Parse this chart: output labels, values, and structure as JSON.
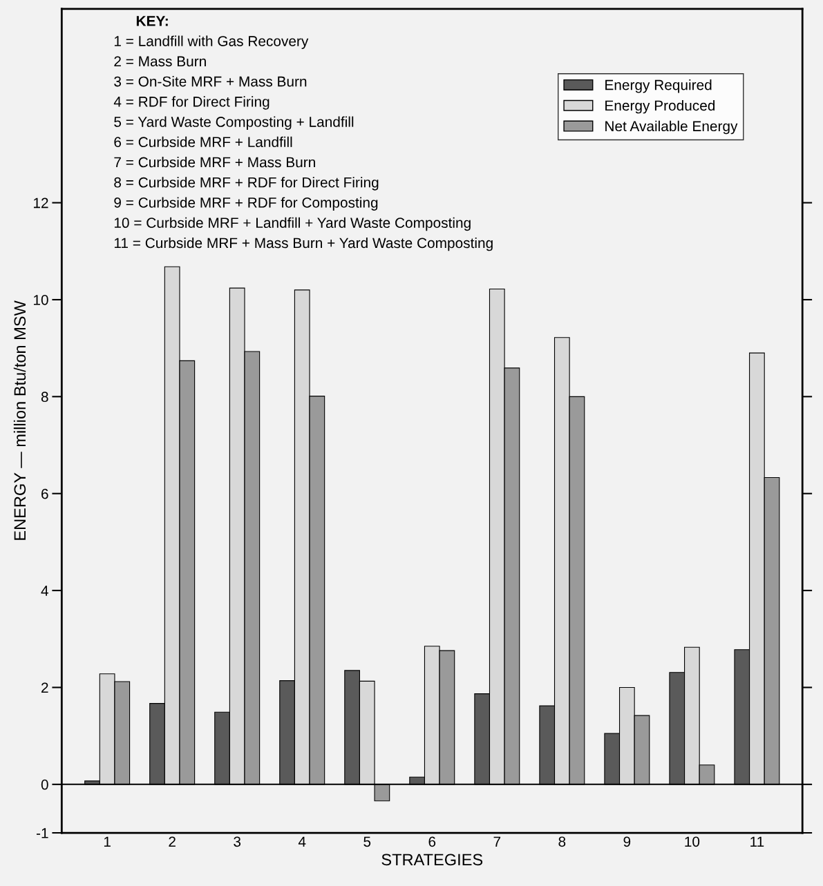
{
  "chart_data": {
    "type": "bar",
    "xlabel": "STRATEGIES",
    "ylabel": "ENERGY — million Btu/ton MSW",
    "categories": [
      "1",
      "2",
      "3",
      "4",
      "5",
      "6",
      "7",
      "8",
      "9",
      "10",
      "11"
    ],
    "series": [
      {
        "name": "Energy Required",
        "color": "#5a5a5a",
        "values": [
          0.07,
          1.67,
          1.49,
          2.14,
          2.35,
          0.15,
          1.87,
          1.62,
          1.05,
          2.31,
          2.78
        ]
      },
      {
        "name": "Energy Produced",
        "color": "#d8d8d8",
        "values": [
          2.28,
          10.68,
          10.24,
          10.2,
          2.13,
          2.85,
          10.22,
          9.22,
          2.0,
          2.83,
          8.9
        ]
      },
      {
        "name": "Net Available Energy",
        "color": "#9a9a9a",
        "values": [
          2.12,
          8.74,
          8.93,
          8.01,
          -0.34,
          2.76,
          8.59,
          8.0,
          1.42,
          0.4,
          6.33
        ]
      }
    ],
    "ylim": [
      -1,
      16
    ],
    "yticks": [
      -1,
      0,
      2,
      4,
      6,
      8,
      10,
      12
    ],
    "ref_lines": [
      {
        "axis": "y",
        "value": 0,
        "color": "#000000"
      }
    ],
    "legend": "top right",
    "grid": false,
    "annotations": [
      "KEY:",
      "1 = Landfill with Gas Recovery",
      "2 = Mass Burn",
      "3 = On-Site MRF + Mass Burn",
      "4 = RDF for Direct Firing",
      "5 = Yard Waste Composting + Landfill",
      "6 = Curbside MRF + Landfill",
      "7 = Curbside MRF + Mass Burn",
      "8 = Curbside MRF + RDF for Direct Firing",
      "9 = Curbside MRF + RDF for Composting",
      "10 = Curbside MRF + Landfill + Yard Waste Composting",
      "11 = Curbside MRF + Mass Burn + Yard Waste Composting"
    ]
  }
}
